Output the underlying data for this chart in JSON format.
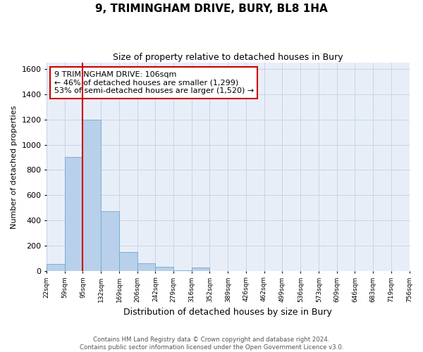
{
  "title": "9, TRIMINGHAM DRIVE, BURY, BL8 1HA",
  "subtitle": "Size of property relative to detached houses in Bury",
  "xlabel": "Distribution of detached houses by size in Bury",
  "ylabel": "Number of detached properties",
  "bar_values": [
    55,
    900,
    1200,
    470,
    150,
    60,
    30,
    5,
    25,
    0,
    0,
    0,
    0,
    0,
    0,
    0,
    0,
    0,
    0,
    0
  ],
  "bin_edges": [
    22,
    59,
    95,
    132,
    169,
    206,
    242,
    279,
    316,
    352,
    389,
    426,
    462,
    499,
    536,
    573,
    609,
    646,
    683,
    719,
    756
  ],
  "bar_color": "#b8d0ea",
  "bar_edge_color": "#6aaad4",
  "grid_color": "#c8d4e8",
  "background_color": "#e8eef8",
  "red_line_x": 95,
  "annotation_text": "9 TRIMINGHAM DRIVE: 106sqm\n← 46% of detached houses are smaller (1,299)\n53% of semi-detached houses are larger (1,520) →",
  "annotation_box_color": "#ffffff",
  "annotation_box_edge_color": "#cc0000",
  "ylim": [
    0,
    1650
  ],
  "yticks": [
    0,
    200,
    400,
    600,
    800,
    1000,
    1200,
    1400,
    1600
  ],
  "footnote": "Contains HM Land Registry data © Crown copyright and database right 2024.\nContains public sector information licensed under the Open Government Licence v3.0.",
  "tick_labels": [
    "22sqm",
    "59sqm",
    "95sqm",
    "132sqm",
    "169sqm",
    "206sqm",
    "242sqm",
    "279sqm",
    "316sqm",
    "352sqm",
    "389sqm",
    "426sqm",
    "462sqm",
    "499sqm",
    "536sqm",
    "573sqm",
    "609sqm",
    "646sqm",
    "683sqm",
    "719sqm",
    "756sqm"
  ],
  "xlim_left": 22,
  "xlim_right": 756
}
